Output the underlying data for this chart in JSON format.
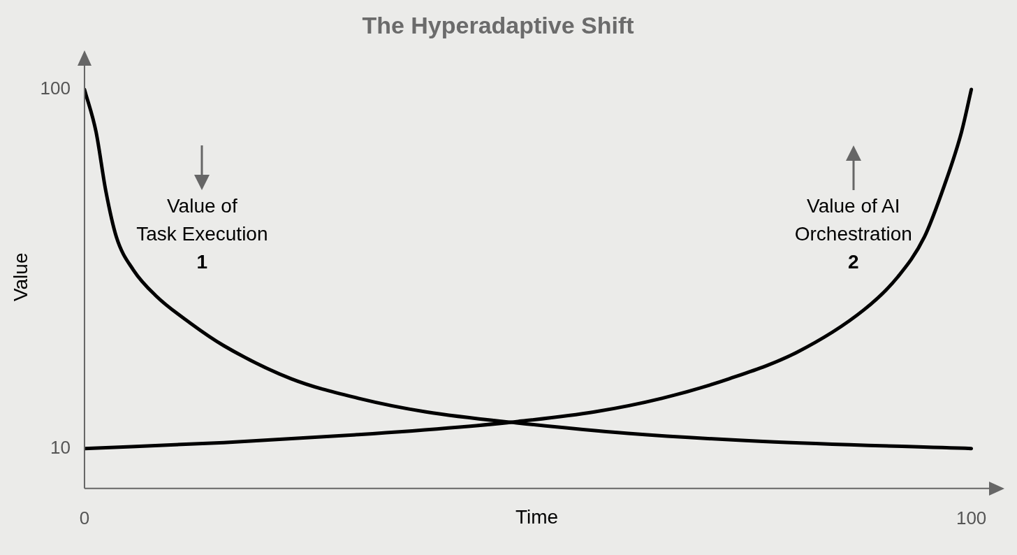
{
  "chart_data": {
    "type": "line",
    "title": "The Hyperadaptive Shift",
    "xlabel": "Time",
    "ylabel": "Value",
    "xlim": [
      0,
      102
    ],
    "ylim": [
      0,
      106
    ],
    "xticks": [
      0,
      100
    ],
    "yticks": [
      10,
      100
    ],
    "grid": false,
    "legend": false,
    "marker": "none",
    "line_style": "solid",
    "series": [
      {
        "color": "#000000",
        "x": [
          0,
          1.3,
          2.4,
          3.6,
          5.5,
          8.1,
          11.9,
          15.7,
          23.3,
          30.9,
          38.5,
          48.9,
          61.3,
          76.5,
          100
        ],
        "values": [
          100,
          89.4,
          74.6,
          63,
          54.8,
          48.2,
          41.5,
          35.8,
          27.5,
          22.6,
          19.2,
          16.4,
          13.8,
          11.8,
          10
        ]
      },
      {
        "color": "#000000",
        "x": [
          0,
          15.7,
          30.9,
          42.3,
          48.9,
          57.5,
          65.1,
          72.7,
          80.3,
          87.9,
          91.7,
          94.7,
          97,
          98.9,
          100
        ],
        "values": [
          10,
          11.5,
          13.5,
          15.4,
          16.8,
          19.2,
          22.6,
          27.5,
          34.1,
          44.8,
          53,
          63,
          76.2,
          89.4,
          100
        ]
      }
    ],
    "annotations": [
      "Value of\nTask Execution\n1",
      "Value of AI\nOrchestration\n2"
    ]
  }
}
